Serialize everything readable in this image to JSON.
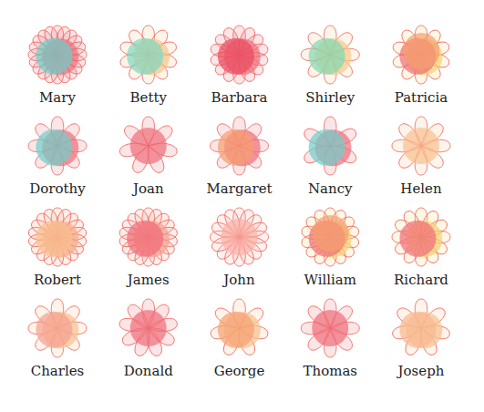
{
  "chart_data": {
    "type": "flower",
    "categories": [
      "Mary",
      "Betty",
      "Barbara",
      "Shirley",
      "Patricia",
      "Dorothy",
      "Joan",
      "Margaret",
      "Nancy",
      "Helen",
      "Robert",
      "James",
      "John",
      "William",
      "Richard",
      "Charles",
      "Donald",
      "George",
      "Thomas",
      "Joseph"
    ],
    "values": [
      20,
      10,
      14,
      8,
      10,
      8,
      7,
      8,
      6,
      8,
      18,
      18,
      16,
      14,
      12,
      8,
      9,
      7,
      8,
      7
    ],
    "colors": [
      [
        "#e8707a",
        "#6dcfca"
      ],
      [
        "#f7c58a",
        "#7fd8c0"
      ],
      [
        "#f06d7a",
        "#e84a5f"
      ],
      [
        "#f7c88a",
        "#80d8b0"
      ],
      [
        "#f7d070",
        "#f06d7a",
        "#f5a070"
      ],
      [
        "#f06d7a",
        "#6dcfca"
      ],
      [
        "#f06d7a"
      ],
      [
        "#f06d7a",
        "#f5a070"
      ],
      [
        "#f06d7a",
        "#6dcfca"
      ],
      [
        "#f8c090"
      ],
      [
        "#f8a888",
        "#f8c090"
      ],
      [
        "#f5a090",
        "#f06d7a"
      ],
      [
        "#f8b0a8"
      ],
      [
        "#f7d070",
        "#f06d7a",
        "#f5a070"
      ],
      [
        "#f7d070",
        "#f06d7a"
      ],
      [
        "#f8c090",
        "#f5a090"
      ],
      [
        "#f06d7a"
      ],
      [
        "#f8c090",
        "#f5a070"
      ],
      [
        "#f06d7a"
      ],
      [
        "#f8c090",
        "#f8b890"
      ]
    ]
  }
}
